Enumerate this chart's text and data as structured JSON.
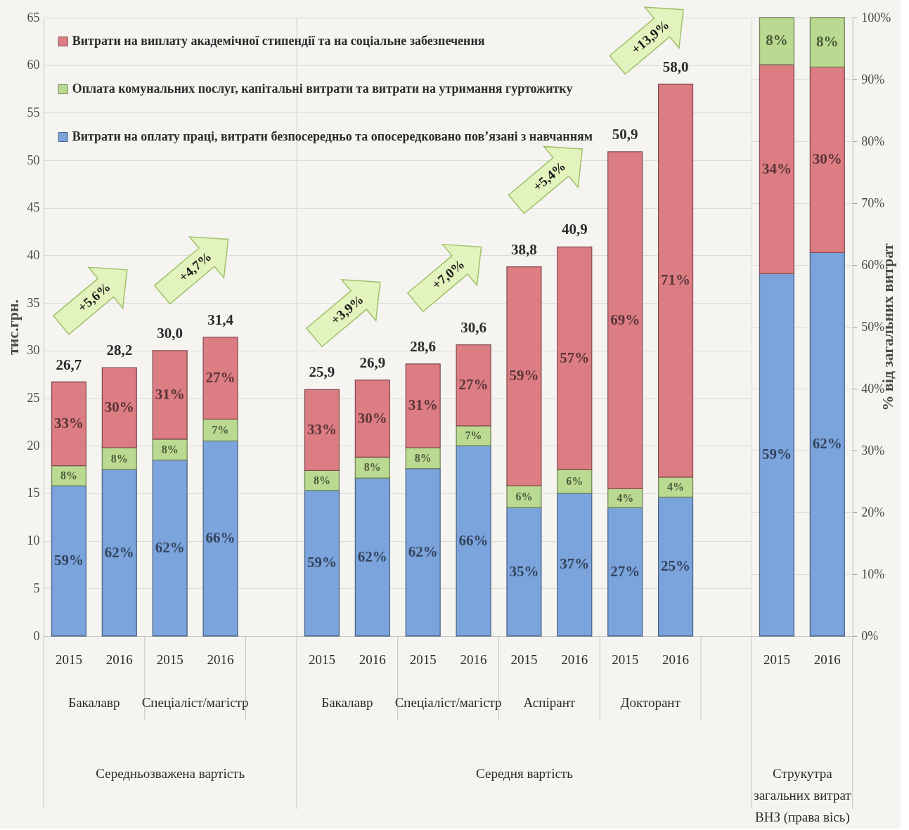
{
  "chart_data": [
    {
      "type": "bar",
      "stacked": true,
      "categories": [
        "2015",
        "2016",
        "2015",
        "2016",
        null
      ],
      "xlabel": "Середньозважена вартість",
      "ylabel": "тис.грн.",
      "ylim": [
        0,
        65
      ],
      "yticks": [
        0,
        5,
        10,
        15,
        20,
        25,
        30,
        35,
        40,
        45,
        50,
        55,
        60,
        65
      ],
      "grid": "y",
      "series": [
        {
          "color": "#7ba3dc",
          "values": [
            15.8,
            17.5,
            18.5,
            20.5,
            null
          ]
        },
        {
          "color": "#bad991",
          "values": [
            2.1,
            2.3,
            2.2,
            2.3,
            null
          ]
        },
        {
          "color": "#db7d83",
          "values": [
            8.8,
            8.4,
            9.3,
            8.6,
            null
          ]
        }
      ],
      "totals": [
        "26,7",
        "28,2",
        "30,0",
        "31,4",
        null
      ],
      "annotations": [
        "Бакалавр",
        "Спеціаліст/магістр",
        "+5,6%",
        "+4,7%",
        "59%",
        "62%",
        "62%",
        "66%",
        "8%",
        "8%",
        "8%",
        "7%",
        "33%",
        "30%",
        "31%",
        "27%"
      ]
    },
    {
      "type": "bar",
      "stacked": true,
      "categories": [
        "2015",
        "2016",
        "2015",
        "2016",
        "2015",
        "2016",
        "2015",
        "2016",
        null
      ],
      "xlabel": "Середня вартість",
      "ylim": [
        0,
        65
      ],
      "yticks": [
        0,
        5,
        10,
        15,
        20,
        25,
        30,
        35,
        40,
        45,
        50,
        55,
        60,
        65
      ],
      "grid": "y",
      "tick_labels": "x",
      "legend": "top left",
      "series": [
        {
          "name": "Витрати на оплату праці, витрати безпосередньо та опосередковано пов’язані з навчанням",
          "color": "#7ba3dc",
          "values": [
            15.3,
            16.6,
            17.6,
            20.0,
            13.5,
            15.0,
            13.5,
            14.6,
            null
          ]
        },
        {
          "name": "Оплата комунальних послуг, капітальні витрати та витрати на утримання гуртожитку",
          "color": "#bad991",
          "values": [
            2.1,
            2.2,
            2.2,
            2.1,
            2.3,
            2.5,
            2.0,
            2.1,
            null
          ]
        },
        {
          "name": "Витрати на виплату академічної стипендії та на соціальне забезпечення",
          "color": "#db7d83",
          "values": [
            8.5,
            8.1,
            8.8,
            8.5,
            23.0,
            23.4,
            35.4,
            41.3,
            null
          ]
        }
      ],
      "totals": [
        "25,9",
        "26,9",
        "28,6",
        "30,6",
        "38,8",
        "40,9",
        "50,9",
        "58,0",
        null
      ],
      "annotations": [
        "Бакалавр",
        "Спеціаліст/магістр",
        "Аспірант",
        "Докторант",
        "+3,9%",
        "+7,0%",
        "+5,4%",
        "+13,9%",
        "59%",
        "62%",
        "62%",
        "66%",
        "35%",
        "37%",
        "27%",
        "25%",
        "8%",
        "8%",
        "8%",
        "7%",
        "6%",
        "6%",
        "4%",
        "4%",
        "33%",
        "30%",
        "31%",
        "27%",
        "59%",
        "57%",
        "69%",
        "71%"
      ]
    },
    {
      "type": "bar",
      "stacked": true,
      "categories": [
        "2015",
        "2016"
      ],
      "xlabel": "Струкутра\nзагальних витрат\nВНЗ (права вісь)",
      "y2label": "% від загальних витрат",
      "y2lim": [
        0,
        100
      ],
      "y2ticks": [
        {
          "value": 0,
          "label": "0%"
        },
        {
          "value": 10,
          "label": "10%"
        },
        {
          "value": 20,
          "label": "20%"
        },
        {
          "value": 30,
          "label": "30%"
        },
        {
          "value": 40,
          "label": "40%"
        },
        {
          "value": 50,
          "label": "50%"
        },
        {
          "value": 60,
          "label": "60%"
        },
        {
          "value": 70,
          "label": "70%"
        },
        {
          "value": 80,
          "label": "80%"
        },
        {
          "value": 90,
          "label": "90%"
        },
        {
          "value": 100,
          "label": "100%"
        }
      ],
      "grid": true,
      "series": [
        {
          "color": "#7ba3dc",
          "axis": "y2",
          "values": [
            58.6,
            62
          ],
          "value_labels": [
            "59%",
            "62%"
          ]
        },
        {
          "color": "#db7d83",
          "axis": "y2",
          "values": [
            33.8,
            30
          ],
          "value_labels": [
            "34%",
            "30%"
          ]
        },
        {
          "color": "#bad991",
          "axis": "y2",
          "values": [
            7.6,
            8
          ],
          "value_labels": [
            "8%",
            "8%"
          ]
        }
      ]
    }
  ]
}
